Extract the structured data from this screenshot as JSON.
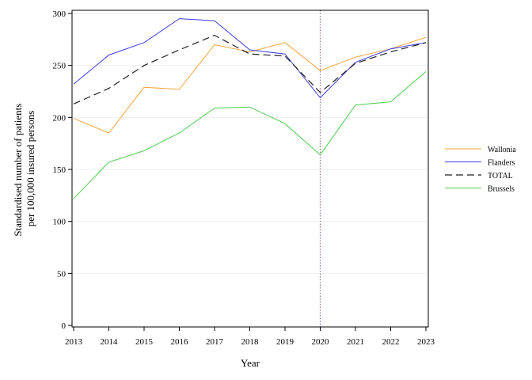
{
  "chart_data": {
    "type": "line",
    "xlabel": "Year",
    "ylabel_lines": [
      "Standardised number of patients",
      "per 100,000 insured persons"
    ],
    "x": [
      2013,
      2014,
      2015,
      2016,
      2017,
      2018,
      2019,
      2020,
      2021,
      2022,
      2023
    ],
    "xlim": [
      2013,
      2023
    ],
    "ylim": [
      0,
      300
    ],
    "yticks": [
      0,
      50,
      100,
      150,
      200,
      250,
      300
    ],
    "grid": "horizontal",
    "legend_position": "right",
    "reference_line": {
      "x": 2020,
      "style": "dotted",
      "color": "#9b6b8f"
    },
    "series": [
      {
        "name": "Wallonia",
        "color": "#f5a33a",
        "dash": "solid",
        "values": [
          199,
          185,
          229,
          227,
          270,
          263,
          272,
          245,
          258,
          266,
          277
        ]
      },
      {
        "name": "Flanders",
        "color": "#3a3ae0",
        "dash": "solid",
        "values": [
          232,
          260,
          272,
          295,
          293,
          265,
          261,
          219,
          253,
          266,
          272
        ]
      },
      {
        "name": "TOTAL",
        "color": "#222222",
        "dash": "dashed",
        "values": [
          213,
          228,
          250,
          265,
          279,
          261,
          259,
          224,
          252,
          263,
          272
        ]
      },
      {
        "name": "Brussels",
        "color": "#4fcc4f",
        "dash": "solid",
        "values": [
          122,
          157,
          168,
          185,
          209,
          210,
          194,
          164,
          212,
          215,
          244
        ]
      }
    ]
  }
}
